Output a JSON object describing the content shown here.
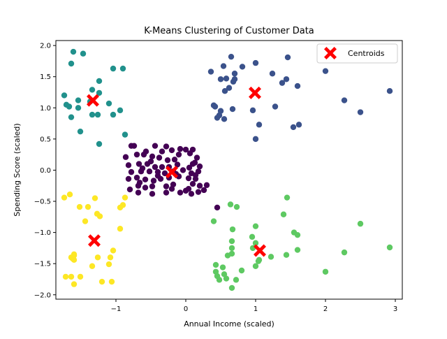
{
  "chart_data": {
    "type": "scatter",
    "title": "K-Means Clustering of Customer Data",
    "xlabel": "Annual Income (scaled)",
    "ylabel": "Spending Score (scaled)",
    "xlim": [
      -1.86,
      3.1
    ],
    "ylim": [
      -2.07,
      2.08
    ],
    "xticks": [
      -1,
      0,
      1,
      2,
      3
    ],
    "xtick_labels": [
      "−1",
      "0",
      "1",
      "2",
      "3"
    ],
    "yticks": [
      -2.0,
      -1.5,
      -1.0,
      -0.5,
      0.0,
      0.5,
      1.0,
      1.5,
      2.0
    ],
    "ytick_labels": [
      "−2.0",
      "−1.5",
      "−1.0",
      "−0.5",
      "0.0",
      "0.5",
      "1.0",
      "1.5",
      "2.0"
    ],
    "grid": false,
    "legend": {
      "location": "upper right",
      "entries": [
        "Centroids"
      ]
    },
    "series": [
      {
        "cluster": 0,
        "color": "#440154",
        "points": [
          [
            -0.78,
            0.39
          ],
          [
            -0.74,
            0.39
          ],
          [
            -0.57,
            0.3
          ],
          [
            -0.44,
            0.39
          ],
          [
            -0.34,
            0.3
          ],
          [
            -0.28,
            0.38
          ],
          [
            -0.2,
            0.32
          ],
          [
            -0.1,
            0.25
          ],
          [
            0.0,
            0.33
          ],
          [
            0.1,
            0.33
          ],
          [
            -0.86,
            0.21
          ],
          [
            -0.7,
            0.25
          ],
          [
            -0.6,
            0.25
          ],
          [
            -0.48,
            0.22
          ],
          [
            -0.38,
            0.2
          ],
          [
            -0.26,
            0.16
          ],
          [
            -0.16,
            0.17
          ],
          [
            -0.08,
            0.34
          ],
          [
            0.06,
            0.27
          ],
          [
            0.16,
            0.2
          ],
          [
            -0.82,
            0.08
          ],
          [
            -0.67,
            0.1
          ],
          [
            -0.55,
            0.1
          ],
          [
            -0.44,
            0.05
          ],
          [
            -0.34,
            0.05
          ],
          [
            -0.24,
            0.05
          ],
          [
            -0.12,
            0.09
          ],
          [
            0.05,
            0.04
          ],
          [
            0.13,
            0.12
          ],
          [
            0.2,
            0.06
          ],
          [
            -0.78,
            -0.03
          ],
          [
            -0.64,
            -0.02
          ],
          [
            -0.52,
            -0.02
          ],
          [
            -0.4,
            -0.03
          ],
          [
            -0.3,
            -0.05
          ],
          [
            -0.18,
            -0.02
          ],
          [
            -0.04,
            0.0
          ],
          [
            0.08,
            -0.05
          ],
          [
            0.18,
            -0.02
          ],
          [
            -0.82,
            -0.14
          ],
          [
            -0.7,
            -0.12
          ],
          [
            -0.58,
            -0.15
          ],
          [
            -0.46,
            -0.17
          ],
          [
            -0.36,
            -0.14
          ],
          [
            -0.24,
            -0.12
          ],
          [
            -0.1,
            -0.1
          ],
          [
            0.04,
            -0.13
          ],
          [
            0.14,
            -0.14
          ],
          [
            -0.8,
            -0.31
          ],
          [
            -0.68,
            -0.25
          ],
          [
            -0.58,
            -0.28
          ],
          [
            -0.48,
            -0.26
          ],
          [
            -0.28,
            -0.26
          ],
          [
            -0.18,
            -0.23
          ],
          [
            -0.08,
            -0.36
          ],
          [
            0.0,
            -0.33
          ],
          [
            0.1,
            -0.22
          ],
          [
            -0.68,
            -0.36
          ],
          [
            -0.48,
            -0.38
          ],
          [
            -0.28,
            -0.36
          ],
          [
            -0.2,
            -0.3
          ],
          [
            0.04,
            -0.3
          ],
          [
            0.08,
            -0.38
          ],
          [
            0.18,
            -0.35
          ],
          [
            0.26,
            -0.32
          ],
          [
            0.3,
            -0.24
          ],
          [
            0.2,
            -0.25
          ],
          [
            -0.4,
            -0.09
          ],
          [
            -0.14,
            -0.06
          ],
          [
            0.1,
            0.1
          ],
          [
            -0.5,
            0.14
          ],
          [
            -0.62,
            0.03
          ],
          [
            0.14,
            -0.08
          ],
          [
            -0.66,
            -0.2
          ],
          [
            0.45,
            -0.6
          ]
        ]
      },
      {
        "cluster": 1,
        "color": "#3b528b",
        "points": [
          [
            0.54,
            1.67
          ],
          [
            0.65,
            1.82
          ],
          [
            0.81,
            1.66
          ],
          [
            1.0,
            1.72
          ],
          [
            1.46,
            1.81
          ],
          [
            0.36,
            1.58
          ],
          [
            0.5,
            1.46
          ],
          [
            0.58,
            1.47
          ],
          [
            0.7,
            1.55
          ],
          [
            0.7,
            1.46
          ],
          [
            0.68,
            1.42
          ],
          [
            0.62,
            1.32
          ],
          [
            0.56,
            1.27
          ],
          [
            0.42,
            1.02
          ],
          [
            0.5,
            0.95
          ],
          [
            0.45,
            0.84
          ],
          [
            0.55,
            0.82
          ],
          [
            0.48,
            0.88
          ],
          [
            0.4,
            1.04
          ],
          [
            0.67,
            0.98
          ],
          [
            0.96,
            0.96
          ],
          [
            1.05,
            0.73
          ],
          [
            1.24,
            1.55
          ],
          [
            1.38,
            1.4
          ],
          [
            1.44,
            1.46
          ],
          [
            1.6,
            1.35
          ],
          [
            1.28,
            1.02
          ],
          [
            1.54,
            0.69
          ],
          [
            1.62,
            0.73
          ],
          [
            2.0,
            1.59
          ],
          [
            2.27,
            1.12
          ],
          [
            2.5,
            0.93
          ],
          [
            2.92,
            1.27
          ],
          [
            1.0,
            0.5
          ]
        ]
      },
      {
        "cluster": 2,
        "color": "#21918c",
        "points": [
          [
            -1.61,
            1.9
          ],
          [
            -1.47,
            1.87
          ],
          [
            -1.64,
            1.71
          ],
          [
            -1.04,
            1.63
          ],
          [
            -0.9,
            1.63
          ],
          [
            -1.24,
            1.43
          ],
          [
            -1.34,
            1.29
          ],
          [
            -1.24,
            1.24
          ],
          [
            -1.74,
            1.2
          ],
          [
            -1.54,
            1.12
          ],
          [
            -1.37,
            1.1
          ],
          [
            -1.71,
            1.05
          ],
          [
            -1.67,
            1.02
          ],
          [
            -1.54,
            1.0
          ],
          [
            -1.1,
            1.07
          ],
          [
            -1.34,
            0.89
          ],
          [
            -1.26,
            0.89
          ],
          [
            -1.04,
            0.89
          ],
          [
            -0.94,
            0.96
          ],
          [
            -1.64,
            0.85
          ],
          [
            -1.51,
            0.62
          ],
          [
            -1.24,
            0.42
          ],
          [
            -0.87,
            0.57
          ]
        ]
      },
      {
        "cluster": 3,
        "color": "#5ec962",
        "points": [
          [
            1.45,
            -0.44
          ],
          [
            0.73,
            -0.59
          ],
          [
            0.64,
            -0.55
          ],
          [
            0.4,
            -0.82
          ],
          [
            1.4,
            -0.71
          ],
          [
            2.5,
            -0.86
          ],
          [
            0.67,
            -0.95
          ],
          [
            0.95,
            -1.07
          ],
          [
            1.0,
            -0.9
          ],
          [
            1.55,
            -1.0
          ],
          [
            1.6,
            -1.04
          ],
          [
            0.66,
            -1.14
          ],
          [
            1.0,
            -1.17
          ],
          [
            0.66,
            -1.25
          ],
          [
            0.66,
            -1.34
          ],
          [
            0.6,
            -1.37
          ],
          [
            0.96,
            -1.25
          ],
          [
            1.22,
            -1.39
          ],
          [
            1.44,
            -1.36
          ],
          [
            1.05,
            -1.44
          ],
          [
            1.6,
            -1.28
          ],
          [
            2.27,
            -1.32
          ],
          [
            2.92,
            -1.24
          ],
          [
            0.43,
            -1.52
          ],
          [
            0.53,
            -1.56
          ],
          [
            0.43,
            -1.63
          ],
          [
            0.45,
            -1.7
          ],
          [
            0.55,
            -1.67
          ],
          [
            0.48,
            -1.76
          ],
          [
            0.58,
            -1.74
          ],
          [
            0.72,
            -1.76
          ],
          [
            0.66,
            -1.89
          ],
          [
            0.8,
            -1.61
          ],
          [
            1.0,
            -1.54
          ],
          [
            2.0,
            -1.63
          ],
          [
            1.04,
            -1.46
          ]
        ]
      },
      {
        "cluster": 4,
        "color": "#fde725",
        "points": [
          [
            -1.66,
            -0.39
          ],
          [
            -1.74,
            -0.44
          ],
          [
            -1.3,
            -0.45
          ],
          [
            -0.87,
            -0.44
          ],
          [
            -0.9,
            -0.56
          ],
          [
            -1.52,
            -0.59
          ],
          [
            -1.4,
            -0.59
          ],
          [
            -0.94,
            -0.6
          ],
          [
            -1.27,
            -0.7
          ],
          [
            -1.23,
            -0.74
          ],
          [
            -1.44,
            -0.82
          ],
          [
            -0.94,
            -0.94
          ],
          [
            -1.6,
            -1.35
          ],
          [
            -1.62,
            -1.42
          ],
          [
            -1.64,
            -1.4
          ],
          [
            -1.6,
            -1.44
          ],
          [
            -1.26,
            -1.4
          ],
          [
            -1.04,
            -1.29
          ],
          [
            -1.08,
            -1.4
          ],
          [
            -1.1,
            -1.51
          ],
          [
            -1.34,
            -1.54
          ],
          [
            -1.64,
            -1.71
          ],
          [
            -1.72,
            -1.71
          ],
          [
            -1.51,
            -1.71
          ],
          [
            -1.6,
            -1.83
          ],
          [
            -1.2,
            -1.79
          ],
          [
            -1.06,
            -1.79
          ],
          [
            -1.6,
            -1.37
          ]
        ]
      }
    ],
    "centroids": {
      "name": "Centroids",
      "color": "#ff0000",
      "marker": "X",
      "points": [
        [
          -1.33,
          1.12
        ],
        [
          -0.2,
          -0.03
        ],
        [
          0.99,
          1.24
        ],
        [
          1.06,
          -1.29
        ],
        [
          -1.31,
          -1.13
        ]
      ]
    }
  }
}
